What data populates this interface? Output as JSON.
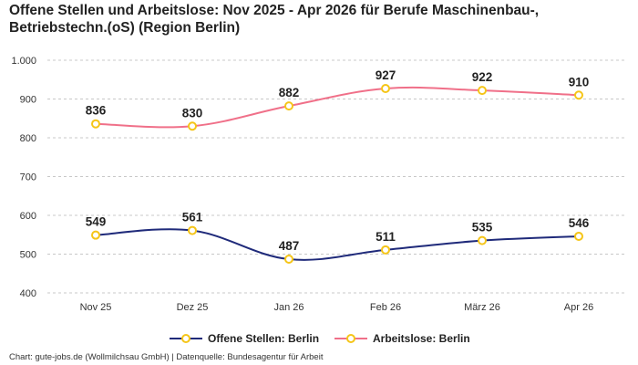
{
  "title": "Offene Stellen und Arbeitslose: Nov 2025 - Apr 2026 für Berufe Maschinenbau-, Betriebstechn.(oS) (Region Berlin)",
  "source": "Chart: gute-jobs.de (Wollmilchsau GmbH) | Datenquelle: Bundesagentur für Arbeit",
  "chart_data": {
    "type": "line",
    "title": "Offene Stellen und Arbeitslose: Nov 2025 - Apr 2026 für Berufe Maschinenbau-, Betriebstechn.(oS) (Region Berlin)",
    "categories": [
      "Nov 25",
      "Dez 25",
      "Jan 26",
      "Feb 26",
      "März 26",
      "Apr 26"
    ],
    "ylim": [
      400,
      1000
    ],
    "yticks": [
      400,
      500,
      600,
      700,
      800,
      900,
      1000
    ],
    "ytick_labels": [
      "400",
      "500",
      "600",
      "700",
      "800",
      "900",
      "1.000"
    ],
    "grid": true,
    "legend_position": "bottom",
    "series": [
      {
        "name": "Offene Stellen: Berlin",
        "color": "#1f2a7a",
        "values": [
          549,
          561,
          487,
          511,
          535,
          546
        ]
      },
      {
        "name": "Arbeitslose: Berlin",
        "color": "#f07089",
        "values": [
          836,
          830,
          882,
          927,
          922,
          910
        ]
      }
    ],
    "marker_color": "#f5c518"
  }
}
